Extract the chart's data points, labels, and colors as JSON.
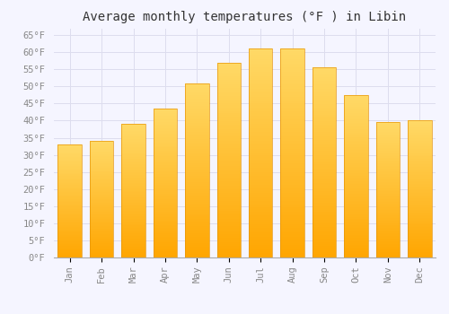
{
  "title": "Average monthly temperatures (°F ) in Libin",
  "months": [
    "Jan",
    "Feb",
    "Mar",
    "Apr",
    "May",
    "Jun",
    "Jul",
    "Aug",
    "Sep",
    "Oct",
    "Nov",
    "Dec"
  ],
  "values": [
    33,
    34,
    39,
    43.5,
    51,
    57,
    61,
    61,
    55.5,
    47.5,
    39.5,
    40
  ],
  "bar_color_top": "#FFD966",
  "bar_color_bottom": "#FFA500",
  "bar_edge_color": "#E8960A",
  "background_color": "#F5F5FF",
  "plot_bg_color": "#F5F5FF",
  "grid_color": "#DDDDEE",
  "yticks": [
    0,
    5,
    10,
    15,
    20,
    25,
    30,
    35,
    40,
    45,
    50,
    55,
    60,
    65
  ],
  "ylim": [
    0,
    67
  ],
  "title_fontsize": 10,
  "tick_fontsize": 7.5,
  "font_family": "monospace",
  "tick_color": "#888888"
}
